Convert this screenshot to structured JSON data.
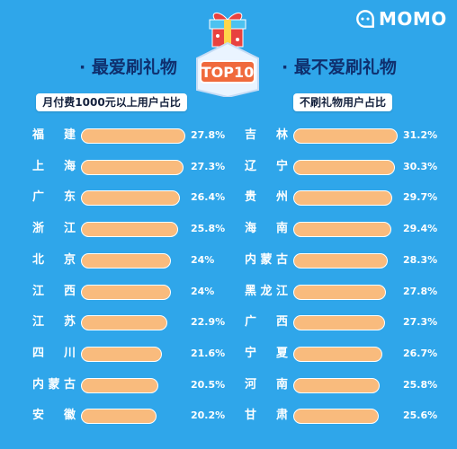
{
  "brand": {
    "name": "MOMO",
    "icon": "momo-chat-icon"
  },
  "badge": {
    "label": "TOP10",
    "icon": "gift-box-icon"
  },
  "left_panel": {
    "title": "· 最爱刷礼物",
    "subtitle": "月付费1000元以上用户占比"
  },
  "right_panel": {
    "title": "· 最不爱刷礼物",
    "subtitle": "不刷礼物用户占比"
  },
  "colors": {
    "background": "#2fa6ea",
    "bar": "#f9bb7d",
    "title": "#0f2f6e"
  },
  "chart_data": [
    {
      "type": "bar",
      "orientation": "horizontal",
      "title": "最爱刷礼物",
      "subtitle": "月付费1000元以上用户占比",
      "categories": [
        "福建",
        "上海",
        "广东",
        "浙江",
        "北京",
        "江西",
        "江苏",
        "四川",
        "内蒙古",
        "安徽"
      ],
      "values": [
        27.8,
        27.3,
        26.4,
        25.8,
        24,
        24,
        22.9,
        21.6,
        20.5,
        20.2
      ],
      "labels": [
        "27.8%",
        "27.3%",
        "26.4%",
        "25.8%",
        "24%",
        "24%",
        "22.9%",
        "21.6%",
        "20.5%",
        "20.2%"
      ],
      "unit": "%",
      "xlim": [
        0,
        27.8
      ],
      "grid": false
    },
    {
      "type": "bar",
      "orientation": "horizontal",
      "title": "最不爱刷礼物",
      "subtitle": "不刷礼物用户占比",
      "categories": [
        "吉林",
        "辽宁",
        "贵州",
        "海南",
        "内蒙古",
        "黑龙江",
        "广西",
        "宁夏",
        "河南",
        "甘肃"
      ],
      "values": [
        31.2,
        30.3,
        29.7,
        29.4,
        28.3,
        27.8,
        27.3,
        26.7,
        25.8,
        25.6
      ],
      "labels": [
        "31.2%",
        "30.3%",
        "29.7%",
        "29.4%",
        "28.3%",
        "27.8%",
        "27.3%",
        "26.7%",
        "25.8%",
        "25.6%"
      ],
      "unit": "%",
      "xlim": [
        0,
        31.2
      ],
      "grid": false
    }
  ]
}
